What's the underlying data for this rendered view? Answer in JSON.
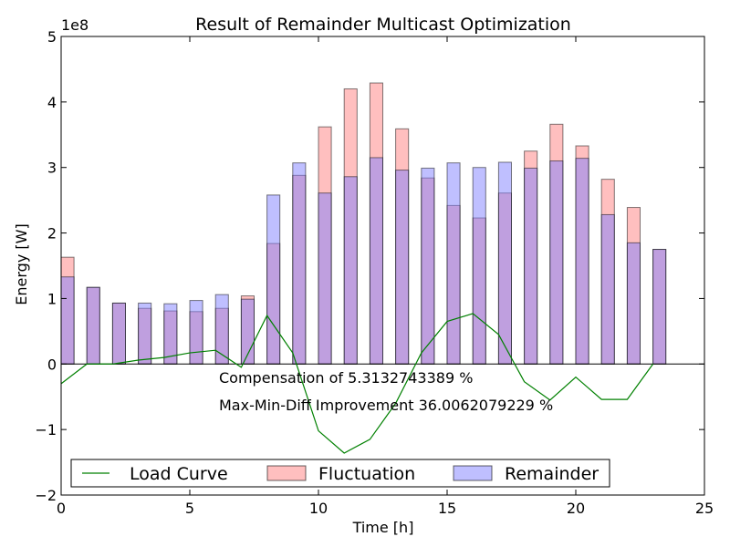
{
  "chart_data": {
    "type": "bar",
    "title": "Result of Remainder Multicast Optimization",
    "xlabel": "Time [h]",
    "ylabel": "Energy [W]",
    "y_multiplier_label": "1e8",
    "y_multiplier": 100000000,
    "xlim": [
      0,
      25
    ],
    "ylim": [
      -2,
      5
    ],
    "x_ticks": [
      "0",
      "5",
      "10",
      "15",
      "20",
      "25"
    ],
    "y_ticks": [
      "−2",
      "−1",
      "0",
      "1",
      "2",
      "3",
      "4",
      "5"
    ],
    "x_tick_values": [
      0,
      5,
      10,
      15,
      20,
      25
    ],
    "y_tick_values": [
      -2,
      -1,
      0,
      1,
      2,
      3,
      4,
      5
    ],
    "grid": false,
    "legend_position": "bottom",
    "annotations": [
      "Compensation of 5.3132743389 %",
      "Max-Min-Diff Improvement 36.0062079229 %"
    ],
    "x": [
      0,
      1,
      2,
      3,
      4,
      5,
      6,
      7,
      8,
      9,
      10,
      11,
      12,
      13,
      14,
      15,
      16,
      17,
      18,
      19,
      20,
      21,
      22,
      23
    ],
    "series": [
      {
        "name": "Load Curve",
        "kind": "line",
        "color": "#008000",
        "values": [
          -0.3,
          0,
          0,
          0.06,
          0.1,
          0.17,
          0.21,
          -0.05,
          0.74,
          0.17,
          -1.02,
          -1.36,
          -1.15,
          -0.6,
          0.17,
          0.65,
          0.77,
          0.45,
          -0.27,
          -0.55,
          -0.2,
          -0.54,
          -0.54,
          0
        ]
      },
      {
        "name": "Fluctuation",
        "kind": "bar",
        "color": "#ff8080",
        "values": [
          1.63,
          1.17,
          0.93,
          0.85,
          0.81,
          0.8,
          0.85,
          1.04,
          1.84,
          2.88,
          3.62,
          4.2,
          4.29,
          3.59,
          2.84,
          2.42,
          2.23,
          2.61,
          3.25,
          3.66,
          3.33,
          2.82,
          2.39,
          1.75
        ]
      },
      {
        "name": "Remainder",
        "kind": "bar",
        "color": "#8080ff",
        "values": [
          1.33,
          1.17,
          0.93,
          0.93,
          0.92,
          0.97,
          1.06,
          0.99,
          2.58,
          3.07,
          2.61,
          2.86,
          3.15,
          2.96,
          2.99,
          3.07,
          3.0,
          3.08,
          2.99,
          3.1,
          3.14,
          2.28,
          1.85,
          1.75
        ]
      }
    ]
  },
  "legend": {
    "items": [
      {
        "label": "Load Curve",
        "kind": "line",
        "color": "#008000"
      },
      {
        "label": "Fluctuation",
        "kind": "bar",
        "color": "#ff8080"
      },
      {
        "label": "Remainder",
        "kind": "bar",
        "color": "#8080ff"
      }
    ]
  }
}
